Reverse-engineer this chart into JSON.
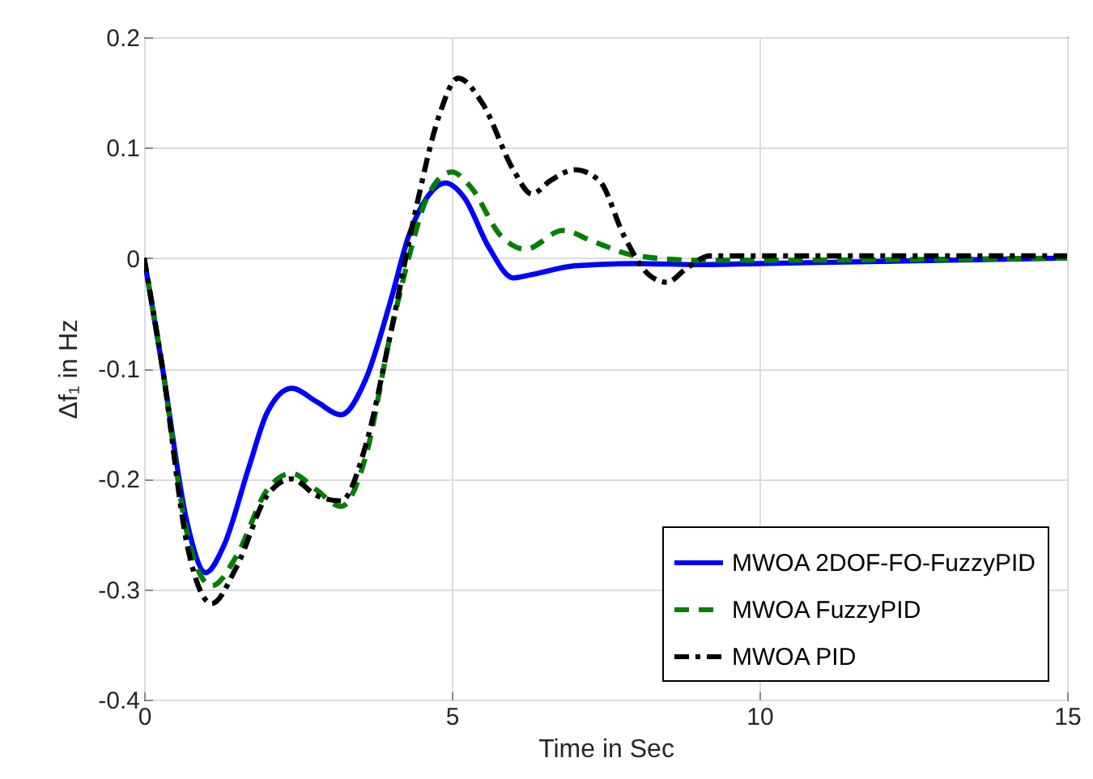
{
  "chart_data": {
    "type": "line",
    "xlabel": "Time in Sec",
    "ylabel": "Δf₁ in Hz",
    "xlim": [
      0,
      15
    ],
    "xticks": [
      0,
      5,
      10,
      15
    ],
    "ylim": [
      -0.4,
      0.2
    ],
    "yticks": [
      -0.4,
      -0.3,
      -0.2,
      -0.1,
      0,
      0.1,
      0.2
    ],
    "grid": true,
    "legend": "bottom right",
    "series": [
      {
        "name": "MWOA 2DOF-FO-FuzzyPID",
        "color": "#0000ff",
        "line_style": "solid",
        "x": [
          0,
          0.3,
          0.7,
          1.0,
          1.3,
          1.7,
          2.0,
          2.4,
          2.8,
          3.2,
          3.6,
          4.0,
          4.3,
          4.6,
          4.9,
          5.2,
          5.6,
          6.0,
          6.3,
          7,
          8,
          9,
          10,
          12,
          15
        ],
        "values": [
          0,
          -0.1,
          -0.24,
          -0.285,
          -0.26,
          -0.19,
          -0.14,
          -0.118,
          -0.13,
          -0.142,
          -0.11,
          -0.04,
          0.02,
          0.055,
          0.068,
          0.055,
          0.01,
          -0.018,
          -0.015,
          -0.007,
          -0.005,
          -0.006,
          -0.005,
          -0.003,
          0
        ]
      },
      {
        "name": "MWOA FuzzyPID",
        "color": "#008000",
        "line_style": "dashed",
        "x": [
          0,
          0.3,
          0.7,
          1.1,
          1.5,
          2.0,
          2.4,
          2.8,
          3.2,
          3.6,
          4.0,
          4.3,
          4.6,
          5.0,
          5.3,
          5.8,
          6.2,
          6.8,
          7.3,
          8,
          9,
          10,
          15
        ],
        "values": [
          0,
          -0.1,
          -0.25,
          -0.297,
          -0.27,
          -0.21,
          -0.195,
          -0.21,
          -0.225,
          -0.18,
          -0.07,
          0,
          0.055,
          0.078,
          0.065,
          0.02,
          0.008,
          0.025,
          0.015,
          0.002,
          -0.002,
          -0.002,
          0
        ]
      },
      {
        "name": "MWOA PID",
        "color": "#000000",
        "line_style": "dashdot",
        "x": [
          0,
          0.3,
          0.7,
          1.1,
          1.5,
          2.0,
          2.4,
          2.8,
          3.2,
          3.6,
          4.0,
          4.4,
          4.8,
          5.1,
          5.5,
          6.0,
          6.3,
          6.6,
          7.0,
          7.4,
          7.8,
          8.2,
          8.5,
          8.8,
          9.2,
          10,
          15
        ],
        "values": [
          0,
          -0.1,
          -0.26,
          -0.313,
          -0.28,
          -0.215,
          -0.2,
          -0.215,
          -0.22,
          -0.17,
          -0.07,
          0.04,
          0.13,
          0.163,
          0.14,
          0.08,
          0.058,
          0.07,
          0.08,
          0.07,
          0.02,
          -0.015,
          -0.022,
          -0.01,
          0.002,
          0.002,
          0.002
        ]
      }
    ]
  }
}
